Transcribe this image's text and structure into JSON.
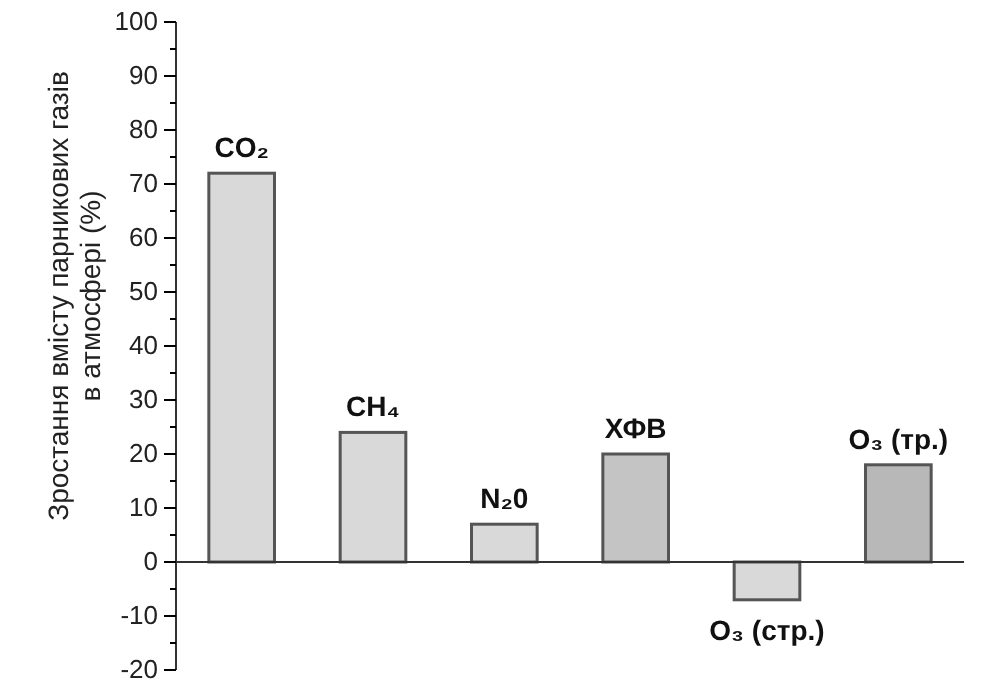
{
  "chart_data": {
    "type": "bar",
    "ylabel": "Зростання вмісту парникових газів в атмосфері (%)",
    "categories": [
      "CO₂",
      "CH₄",
      "N₂0",
      "ХФВ",
      "O₃ (стр.)",
      "O₃ (тр.)"
    ],
    "values": [
      72,
      24,
      7,
      20,
      -7,
      18
    ],
    "colors": [
      "#d9d9d9",
      "#d9d9d9",
      "#d9d9d9",
      "#c4c4c4",
      "#d9d9d9",
      "#b8b8b8"
    ],
    "ylim": [
      -20,
      100
    ],
    "yticks": [
      -20,
      {
        "value": -15,
        "label": null
      },
      -10,
      {
        "value": -5,
        "label": null
      },
      0,
      {
        "value": 5,
        "label": null
      },
      10,
      {
        "value": 15,
        "label": null
      },
      20,
      {
        "value": 25,
        "label": null
      },
      30,
      {
        "value": 35,
        "label": null
      },
      40,
      {
        "value": 45,
        "label": null
      },
      50,
      {
        "value": 55,
        "label": null
      },
      60,
      {
        "value": 65,
        "label": null
      },
      70,
      {
        "value": 75,
        "label": null
      },
      80,
      {
        "value": 85,
        "label": null
      },
      90,
      {
        "value": 95,
        "label": null
      },
      100
    ]
  }
}
